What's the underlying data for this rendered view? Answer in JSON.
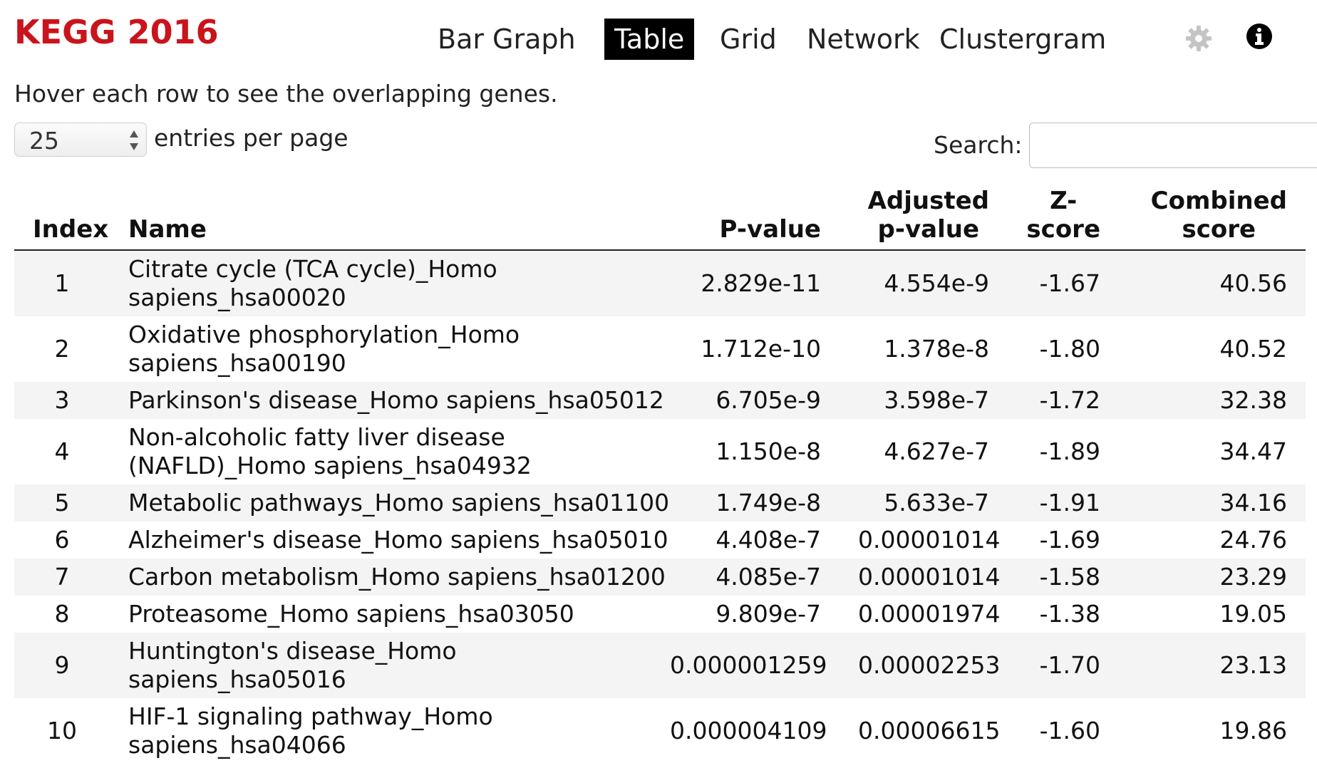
{
  "header": {
    "app_title": "KEGG 2016",
    "tabs": [
      {
        "label": "Bar Graph",
        "active": false
      },
      {
        "label": "Table",
        "active": true
      },
      {
        "label": "Grid",
        "active": false
      },
      {
        "label": "Network",
        "active": false
      },
      {
        "label": "Clustergram",
        "active": false
      }
    ],
    "icons": {
      "settings": "gear-icon",
      "info": "info-icon"
    }
  },
  "instructions": "Hover each row to see the overlapping genes.",
  "controls": {
    "entries_value": "25",
    "entries_label": "entries per page",
    "search_label": "Search:",
    "search_value": ""
  },
  "table": {
    "headers": {
      "index": "Index",
      "name": "Name",
      "pvalue": "P-value",
      "adjusted_line1": "Adjusted",
      "adjusted_line2": "p-value",
      "zscore_line1": "Z-",
      "zscore_line2": "score",
      "combined_line1": "Combined",
      "combined_line2": "score"
    },
    "rows": [
      {
        "index": "1",
        "name_line1": "Citrate cycle (TCA cycle)_Homo",
        "name_line2": "sapiens_hsa00020",
        "pvalue": "2.829e-11",
        "adjusted": "4.554e-9",
        "zscore": "-1.67",
        "combined": "40.56"
      },
      {
        "index": "2",
        "name_line1": "Oxidative phosphorylation_Homo",
        "name_line2": "sapiens_hsa00190",
        "pvalue": "1.712e-10",
        "adjusted": "1.378e-8",
        "zscore": "-1.80",
        "combined": "40.52"
      },
      {
        "index": "3",
        "name_line1": "Parkinson's disease_Homo sapiens_hsa05012",
        "name_line2": "",
        "pvalue": "6.705e-9",
        "adjusted": "3.598e-7",
        "zscore": "-1.72",
        "combined": "32.38"
      },
      {
        "index": "4",
        "name_line1": "Non-alcoholic fatty liver disease",
        "name_line2": "(NAFLD)_Homo sapiens_hsa04932",
        "pvalue": "1.150e-8",
        "adjusted": "4.627e-7",
        "zscore": "-1.89",
        "combined": "34.47"
      },
      {
        "index": "5",
        "name_line1": "Metabolic pathways_Homo sapiens_hsa01100",
        "name_line2": "",
        "pvalue": "1.749e-8",
        "adjusted": "5.633e-7",
        "zscore": "-1.91",
        "combined": "34.16"
      },
      {
        "index": "6",
        "name_line1": "Alzheimer's disease_Homo sapiens_hsa05010",
        "name_line2": "",
        "pvalue": "4.408e-7",
        "adjusted": "0.00001014",
        "zscore": "-1.69",
        "combined": "24.76"
      },
      {
        "index": "7",
        "name_line1": "Carbon metabolism_Homo sapiens_hsa01200",
        "name_line2": "",
        "pvalue": "4.085e-7",
        "adjusted": "0.00001014",
        "zscore": "-1.58",
        "combined": "23.29"
      },
      {
        "index": "8",
        "name_line1": "Proteasome_Homo sapiens_hsa03050",
        "name_line2": "",
        "pvalue": "9.809e-7",
        "adjusted": "0.00001974",
        "zscore": "-1.38",
        "combined": "19.05"
      },
      {
        "index": "9",
        "name_line1": "Huntington's disease_Homo",
        "name_line2": "sapiens_hsa05016",
        "pvalue": "0.000001259",
        "adjusted": "0.00002253",
        "zscore": "-1.70",
        "combined": "23.13"
      },
      {
        "index": "10",
        "name_line1": "HIF-1 signaling pathway_Homo",
        "name_line2": "sapiens_hsa04066",
        "pvalue": "0.000004109",
        "adjusted": "0.00006615",
        "zscore": "-1.60",
        "combined": "19.86"
      }
    ]
  },
  "colors": {
    "title": "#c9141c",
    "active_tab_bg": "#000000",
    "active_tab_text": "#ffffff",
    "stripe": "#f4f4f4"
  }
}
